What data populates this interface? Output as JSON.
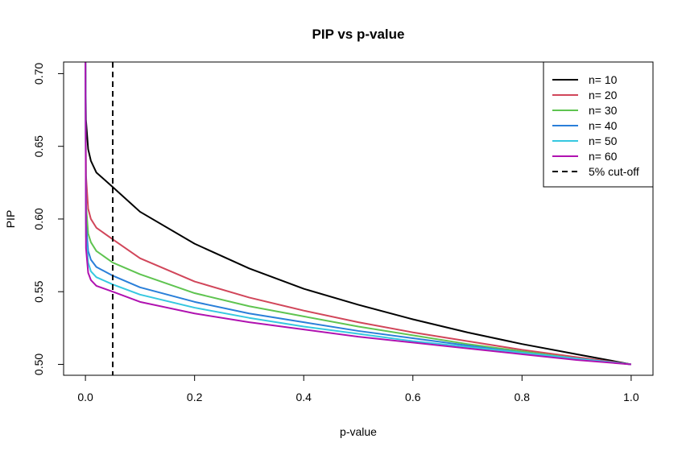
{
  "chart_data": {
    "type": "line",
    "title": "PIP vs p-value",
    "xlabel": "p-value",
    "ylabel": "PIP",
    "xlim": [
      -0.04,
      1.04
    ],
    "ylim": [
      0.4925,
      0.708
    ],
    "x_ticks": [
      0.0,
      0.2,
      0.4,
      0.6,
      0.8,
      1.0
    ],
    "x_tick_labels": [
      "0.0",
      "0.2",
      "0.4",
      "0.6",
      "0.8",
      "1.0"
    ],
    "y_ticks": [
      0.5,
      0.55,
      0.6,
      0.65,
      0.7
    ],
    "y_tick_labels": [
      "0.50",
      "0.55",
      "0.60",
      "0.65",
      "0.70"
    ],
    "grid": false,
    "legend_position": "top-right",
    "x": [
      0.0,
      0.001,
      0.005,
      0.01,
      0.02,
      0.05,
      0.1,
      0.2,
      0.3,
      0.4,
      0.5,
      0.6,
      0.7,
      0.8,
      0.9,
      1.0
    ],
    "series": [
      {
        "name": "n= 10",
        "color": "#000000",
        "values": [
          0.708,
          0.668,
          0.648,
          0.64,
          0.632,
          0.622,
          0.605,
          0.583,
          0.566,
          0.552,
          0.541,
          0.531,
          0.522,
          0.514,
          0.507,
          0.5
        ]
      },
      {
        "name": "n= 20",
        "color": "#d1465a",
        "values": [
          0.708,
          0.63,
          0.607,
          0.6,
          0.594,
          0.586,
          0.573,
          0.557,
          0.546,
          0.537,
          0.529,
          0.522,
          0.516,
          0.51,
          0.505,
          0.5
        ]
      },
      {
        "name": "n= 30",
        "color": "#5fc450",
        "values": [
          0.708,
          0.61,
          0.59,
          0.584,
          0.578,
          0.57,
          0.562,
          0.549,
          0.54,
          0.533,
          0.526,
          0.52,
          0.514,
          0.509,
          0.504,
          0.5
        ]
      },
      {
        "name": "n= 40",
        "color": "#2a7fd9",
        "values": [
          0.708,
          0.597,
          0.578,
          0.572,
          0.567,
          0.561,
          0.553,
          0.543,
          0.535,
          0.529,
          0.523,
          0.518,
          0.513,
          0.508,
          0.504,
          0.5
        ]
      },
      {
        "name": "n= 50",
        "color": "#36c8e0",
        "values": [
          0.708,
          0.588,
          0.57,
          0.564,
          0.56,
          0.555,
          0.548,
          0.539,
          0.532,
          0.526,
          0.521,
          0.516,
          0.512,
          0.508,
          0.504,
          0.5
        ]
      },
      {
        "name": "n= 60",
        "color": "#b012b0",
        "values": [
          0.708,
          0.58,
          0.563,
          0.558,
          0.554,
          0.55,
          0.543,
          0.535,
          0.529,
          0.524,
          0.519,
          0.515,
          0.511,
          0.507,
          0.503,
          0.5
        ]
      }
    ],
    "reference_line": {
      "name": "5% cut-off",
      "orientation": "vertical",
      "x": 0.05,
      "color": "#000000",
      "style": "dashed"
    }
  }
}
